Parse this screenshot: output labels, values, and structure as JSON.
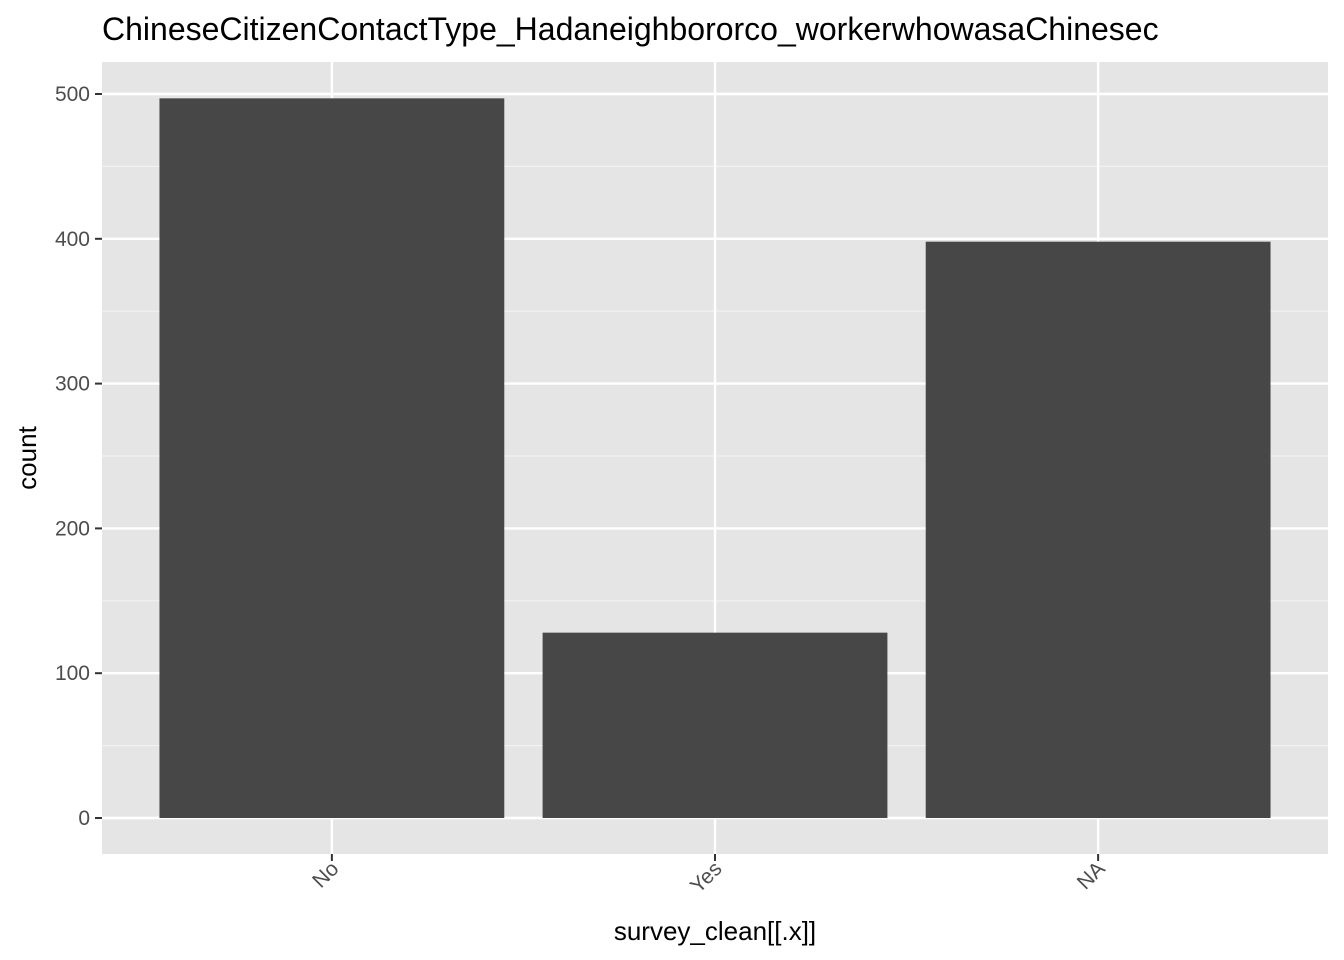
{
  "chart_data": {
    "type": "bar",
    "title": "ChineseCitizenContactType_Hadaneighbororco_workerwhowasaChinesec",
    "xlabel": "survey_clean[[.x]]",
    "ylabel": "count",
    "categories": [
      "No",
      "Yes",
      "NA"
    ],
    "values": [
      497,
      128,
      398
    ],
    "ylim": [
      0,
      525
    ],
    "yticks": [
      0,
      100,
      200,
      300,
      400,
      500
    ],
    "ytick_labels": [
      "0",
      "100",
      "200",
      "300",
      "400",
      "500"
    ],
    "grid": true,
    "x_tick_label_rotation_deg": 45,
    "colors": {
      "bar": "#474747",
      "panel_background": "#e5e5e5",
      "grid_major": "#ffffff",
      "grid_minor": "#f2f2f2",
      "tick_label": "#4d4d4d",
      "tick_mark": "#333333"
    }
  }
}
